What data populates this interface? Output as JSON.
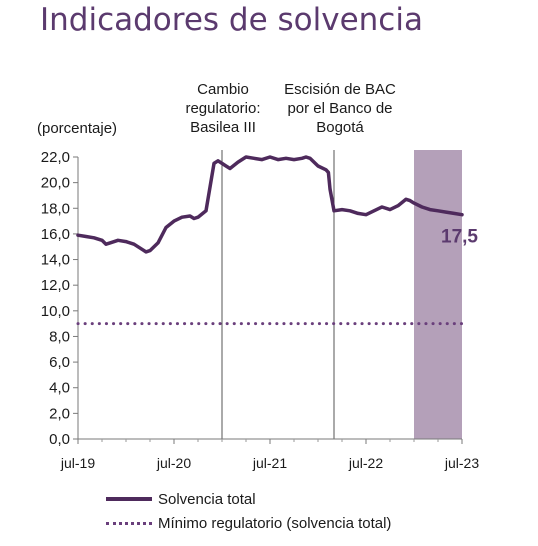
{
  "chart_data": {
    "type": "line",
    "title": "Indicadores de solvencia",
    "ylabel": "(porcentaje)",
    "ylim": [
      0,
      22
    ],
    "yticks": [
      "22,0",
      "20,0",
      "18,0",
      "16,0",
      "14,0",
      "12,0",
      "10,0",
      "8,0",
      "6,0",
      "4,0",
      "2,0",
      "0,0"
    ],
    "ytick_values": [
      22,
      20,
      18,
      16,
      14,
      12,
      10,
      8,
      6,
      4,
      2,
      0
    ],
    "xticks": [
      "jul-19",
      "jul-20",
      "jul-21",
      "jul-22",
      "jul-23"
    ],
    "xtick_values": [
      0,
      12,
      24,
      36,
      48
    ],
    "xlim": [
      0,
      48
    ],
    "annotations": [
      {
        "text": [
          "Cambio",
          "regulatorio:",
          "Basilea III"
        ],
        "x": 18
      },
      {
        "text": [
          "Escisión de BAC",
          "por el Banco de",
          "Bogotá"
        ],
        "x": 32
      }
    ],
    "shaded_region": {
      "x_start": 42,
      "x_end": 48,
      "color": "#b4a0b9"
    },
    "end_label": "17,5",
    "series": [
      {
        "name": "Solvencia total",
        "style": "solid",
        "color": "#4e2a5c",
        "x": [
          0,
          1,
          2,
          3,
          3.5,
          4,
          5,
          6,
          7,
          8,
          8.5,
          9,
          10,
          11,
          12,
          13,
          14,
          14.5,
          15,
          16,
          17,
          17.5,
          18,
          18.5,
          19,
          20,
          21,
          22,
          23,
          24,
          25,
          26,
          27,
          28,
          28.5,
          29,
          30,
          31,
          31.3,
          31.5,
          32,
          33,
          34,
          35,
          36,
          37,
          38,
          39,
          40,
          41,
          41.5,
          42,
          43,
          44,
          45,
          46,
          47,
          48
        ],
        "y": [
          15.9,
          15.8,
          15.7,
          15.5,
          15.2,
          15.3,
          15.5,
          15.4,
          15.2,
          14.8,
          14.6,
          14.7,
          15.3,
          16.5,
          17.0,
          17.3,
          17.4,
          17.2,
          17.3,
          17.8,
          21.5,
          21.7,
          21.5,
          21.3,
          21.1,
          21.6,
          22.0,
          21.9,
          21.8,
          22.0,
          21.8,
          21.9,
          21.8,
          21.9,
          22.0,
          21.9,
          21.3,
          21.0,
          20.8,
          19.5,
          17.8,
          17.9,
          17.8,
          17.6,
          17.5,
          17.8,
          18.1,
          17.9,
          18.2,
          18.7,
          18.6,
          18.4,
          18.1,
          17.9,
          17.8,
          17.7,
          17.6,
          17.5
        ]
      },
      {
        "name": "Mínimo regulatorio (solvencia total)",
        "style": "dotted",
        "color": "#6a3f7c",
        "x": [
          0,
          48
        ],
        "y": [
          9.0,
          9.0
        ]
      }
    ],
    "grid": false,
    "legend_position": "bottom-left"
  }
}
